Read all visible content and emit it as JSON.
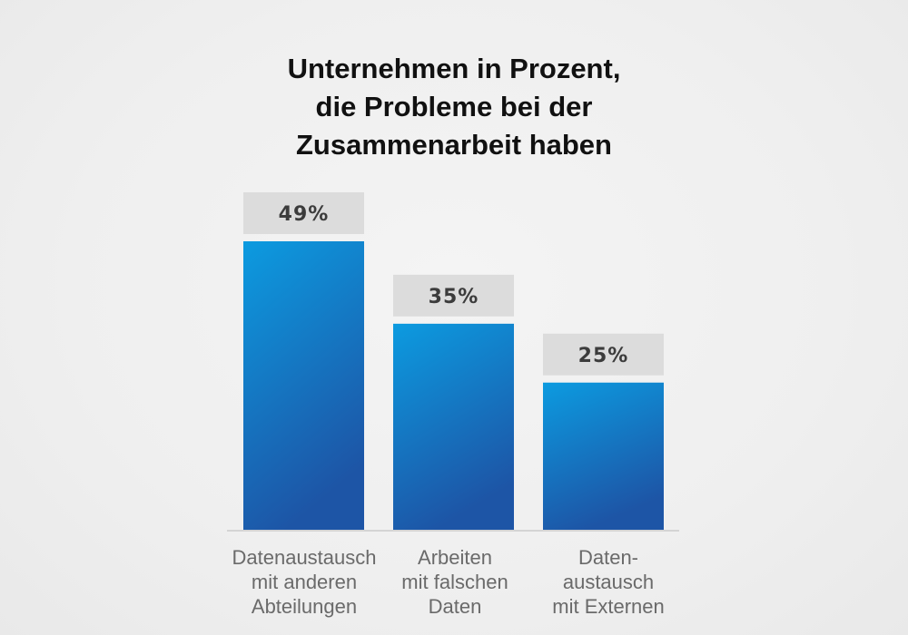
{
  "chart_data": {
    "type": "bar",
    "title_lines": [
      "Unternehmen in Prozent,",
      "die Probleme bei der",
      "Zusammenarbeit haben"
    ],
    "categories": [
      [
        "Datenaustausch",
        "mit anderen",
        "Abteilungen"
      ],
      [
        "Arbeiten",
        "mit falschen",
        "Daten"
      ],
      [
        "Daten-",
        "austausch",
        "mit Externen"
      ]
    ],
    "values": [
      49,
      35,
      25
    ],
    "value_labels": [
      "49%",
      "35%",
      "25%"
    ],
    "unit": "%",
    "ylim": [
      0,
      49
    ],
    "grid": false,
    "legend": "none",
    "colors": {
      "bar_top": "#0c9be0",
      "bar_bottom": "#1d55a6",
      "label_box": "#dcdcdc",
      "baseline": "#d4d4d4"
    }
  }
}
